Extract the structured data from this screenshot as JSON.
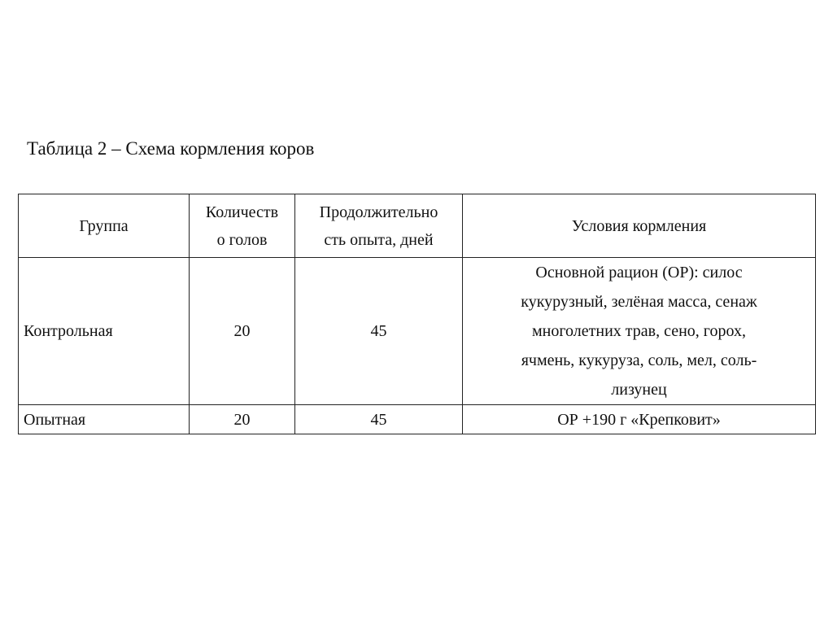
{
  "title": "Таблица 2 – Схема кормления коров",
  "table": {
    "headers": [
      [
        "Группа"
      ],
      [
        "Количеств",
        "о голов"
      ],
      [
        "Продолжительно",
        "сть опыта, дней"
      ],
      [
        "Условия кормления"
      ]
    ],
    "rows": [
      {
        "group": "Контрольная",
        "count": "20",
        "duration": "45",
        "conditions": [
          "Основной рацион (ОР): силос",
          "кукурузный, зелёная масса, сенаж",
          "многолетних трав, сено, горох,",
          "ячмень, кукуруза, соль, мел, соль-",
          "лизунец"
        ]
      },
      {
        "group": "Опытная",
        "count": "20",
        "duration": "45",
        "conditions": [
          "ОР +190 г «Крепковит»"
        ]
      }
    ]
  }
}
